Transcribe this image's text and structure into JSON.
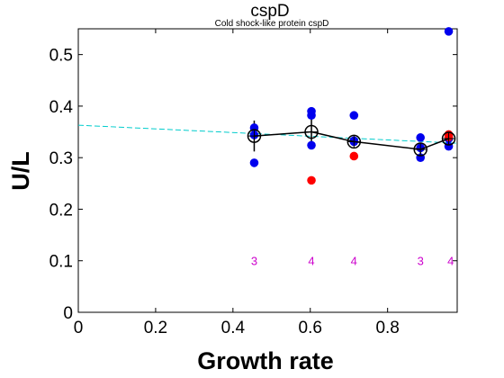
{
  "chart_data": {
    "type": "scatter",
    "title": "cspD",
    "subtitle": "Cold shock-like protein cspD",
    "xlabel": "Growth rate",
    "ylabel": "U/L",
    "xlim": [
      0,
      0.98
    ],
    "ylim": [
      0,
      0.55
    ],
    "xticks": [
      "0",
      "0.2",
      "0.4",
      "0.6",
      "0.8"
    ],
    "xtick_values": [
      0,
      0.2,
      0.4,
      0.6,
      0.8
    ],
    "yticks": [
      "0",
      "0.1",
      "0.2",
      "0.3",
      "0.4",
      "0.5"
    ],
    "ytick_values": [
      0,
      0.1,
      0.2,
      0.3,
      0.4,
      0.5
    ],
    "grid": false,
    "blue_points": [
      {
        "x": 0.455,
        "y": 0.358
      },
      {
        "x": 0.455,
        "y": 0.344
      },
      {
        "x": 0.455,
        "y": 0.29
      },
      {
        "x": 0.603,
        "y": 0.39
      },
      {
        "x": 0.603,
        "y": 0.382
      },
      {
        "x": 0.603,
        "y": 0.324
      },
      {
        "x": 0.713,
        "y": 0.382
      },
      {
        "x": 0.713,
        "y": 0.333
      },
      {
        "x": 0.713,
        "y": 0.331
      },
      {
        "x": 0.885,
        "y": 0.339
      },
      {
        "x": 0.885,
        "y": 0.319
      },
      {
        "x": 0.885,
        "y": 0.3
      },
      {
        "x": 0.958,
        "y": 0.545
      },
      {
        "x": 0.958,
        "y": 0.337
      },
      {
        "x": 0.958,
        "y": 0.322
      }
    ],
    "red_points": [
      {
        "x": 0.603,
        "y": 0.256
      },
      {
        "x": 0.713,
        "y": 0.303
      },
      {
        "x": 0.958,
        "y": 0.345
      },
      {
        "x": 0.958,
        "y": 0.34
      }
    ],
    "mean_line": {
      "x": [
        0.455,
        0.603,
        0.713,
        0.885,
        0.958
      ],
      "y": [
        0.342,
        0.35,
        0.331,
        0.316,
        0.337
      ],
      "err": [
        0.03,
        0.03,
        0.006,
        0.012,
        0.01
      ]
    },
    "trend_line": {
      "x": [
        0,
        0.98
      ],
      "y": [
        0.363,
        0.328
      ]
    },
    "counts": [
      {
        "x": 0.455,
        "label": "3"
      },
      {
        "x": 0.603,
        "label": "4"
      },
      {
        "x": 0.713,
        "label": "4"
      },
      {
        "x": 0.885,
        "label": "3"
      },
      {
        "x": 0.963,
        "label": "4"
      }
    ],
    "count_y": 0.1,
    "colors": {
      "blue": "#0000ee",
      "red": "#ff0000",
      "mean": "#000000",
      "trend": "#00cccc",
      "count": "#cc00cc"
    }
  }
}
